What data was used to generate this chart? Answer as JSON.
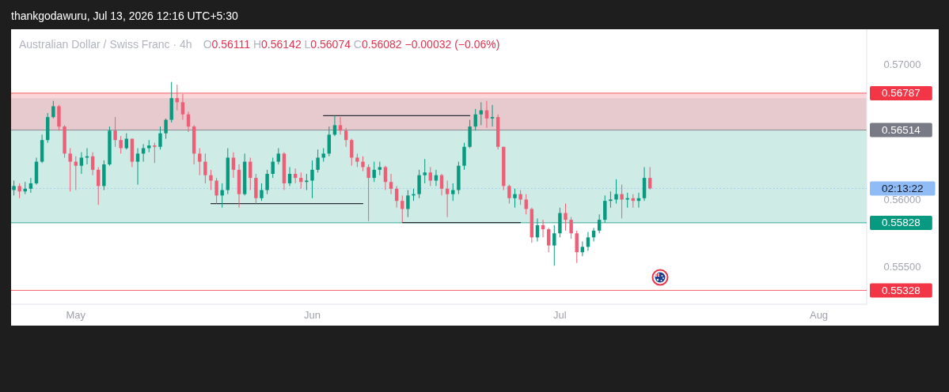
{
  "chart_data": {
    "type": "candlestick",
    "title": "Australian Dollar / Swiss Franc · 4h",
    "subtitle": "O0.56111 H0.56142 L0.56074 C0.56082 −0.00032 (−0.06%)",
    "annotations": [
      "thankgodawuru, Jul 13, 2026 12:16 UTC+5:30",
      "02:13:22"
    ],
    "categories": [
      null,
      null,
      null,
      null,
      null,
      null,
      null,
      null,
      null,
      null,
      null,
      "May",
      null,
      null,
      null,
      null,
      null,
      null,
      null,
      null,
      null,
      null,
      null,
      null,
      null,
      null,
      null,
      null,
      null,
      null,
      null,
      null,
      null,
      null,
      null,
      null,
      null,
      null,
      null,
      null,
      null,
      null,
      null,
      null,
      null,
      null,
      null,
      null,
      null,
      null,
      null,
      null,
      null,
      "Jun",
      null,
      null,
      null,
      null,
      null,
      null,
      null,
      null,
      null,
      null,
      null,
      null,
      null,
      null,
      null,
      null,
      null,
      null,
      null,
      null,
      null,
      null,
      null,
      null,
      null,
      null,
      null,
      null,
      null,
      null,
      null,
      null,
      null,
      null,
      null,
      null,
      null,
      null,
      null,
      null,
      null,
      null,
      null,
      "Jul",
      null,
      null,
      null,
      null,
      null,
      null,
      null,
      null,
      null,
      null,
      null,
      null,
      null,
      null,
      null,
      null,
      null,
      null,
      null,
      null,
      null,
      null,
      null,
      null,
      null,
      null,
      null,
      null,
      null,
      null,
      null,
      null,
      null,
      null,
      null,
      null,
      null,
      null,
      null,
      null,
      null,
      null,
      null,
      null,
      null,
      "Aug",
      null,
      null,
      null,
      null,
      null,
      null,
      null,
      null
    ],
    "ohlc": [
      [
        0.5607,
        0.5614,
        0.5603,
        0.561
      ],
      [
        0.561,
        0.5612,
        0.5601,
        0.5606
      ],
      [
        0.5606,
        0.5613,
        0.5604,
        0.5608
      ],
      [
        0.5608,
        0.5616,
        0.5605,
        0.5612
      ],
      [
        0.5612,
        0.5631,
        0.5611,
        0.5628
      ],
      [
        0.5628,
        0.5648,
        0.5627,
        0.5644
      ],
      [
        0.5644,
        0.5664,
        0.5642,
        0.5661
      ],
      [
        0.5661,
        0.5673,
        0.566,
        0.5669
      ],
      [
        0.5669,
        0.567,
        0.5651,
        0.5654
      ],
      [
        0.5654,
        0.5655,
        0.5631,
        0.5634
      ],
      [
        0.5634,
        0.5638,
        0.5606,
        0.5628
      ],
      [
        0.5628,
        0.5632,
        0.5607,
        0.5625
      ],
      [
        0.5625,
        0.5635,
        0.5619,
        0.5631
      ],
      [
        0.5631,
        0.5638,
        0.5626,
        0.5632
      ],
      [
        0.5632,
        0.5635,
        0.5618,
        0.5622
      ],
      [
        0.5622,
        0.5624,
        0.5596,
        0.561
      ],
      [
        0.561,
        0.5629,
        0.5607,
        0.5626
      ],
      [
        0.5626,
        0.5654,
        0.5625,
        0.5651
      ],
      [
        0.5651,
        0.5661,
        0.5639,
        0.5644
      ],
      [
        0.5644,
        0.5647,
        0.5634,
        0.5638
      ],
      [
        0.5638,
        0.5649,
        0.5637,
        0.5645
      ],
      [
        0.5645,
        0.5645,
        0.5624,
        0.5628
      ],
      [
        0.5628,
        0.5638,
        0.5611,
        0.5634
      ],
      [
        0.5634,
        0.5641,
        0.5628,
        0.5638
      ],
      [
        0.5638,
        0.5644,
        0.5635,
        0.564
      ],
      [
        0.564,
        0.5642,
        0.5627,
        0.5639
      ],
      [
        0.5639,
        0.5654,
        0.5637,
        0.5649
      ],
      [
        0.5649,
        0.566,
        0.5645,
        0.5659
      ],
      [
        0.5659,
        0.5687,
        0.5657,
        0.5675
      ],
      [
        0.5675,
        0.5685,
        0.5666,
        0.5672
      ],
      [
        0.5672,
        0.5678,
        0.5659,
        0.5663
      ],
      [
        0.5663,
        0.5665,
        0.565,
        0.5654
      ],
      [
        0.5654,
        0.5655,
        0.5626,
        0.5634
      ],
      [
        0.5634,
        0.5638,
        0.5618,
        0.5628
      ],
      [
        0.5628,
        0.5634,
        0.5612,
        0.5618
      ],
      [
        0.5618,
        0.5622,
        0.5607,
        0.5614
      ],
      [
        0.5614,
        0.5616,
        0.5597,
        0.5603
      ],
      [
        0.5603,
        0.5612,
        0.5594,
        0.5607
      ],
      [
        0.5607,
        0.5638,
        0.5604,
        0.5631
      ],
      [
        0.5631,
        0.5635,
        0.5616,
        0.5622
      ],
      [
        0.5622,
        0.5626,
        0.5594,
        0.5604
      ],
      [
        0.5604,
        0.5634,
        0.5603,
        0.5628
      ],
      [
        0.5628,
        0.5631,
        0.5607,
        0.5616
      ],
      [
        0.5616,
        0.5619,
        0.5597,
        0.5601
      ],
      [
        0.5601,
        0.5612,
        0.5599,
        0.5607
      ],
      [
        0.5607,
        0.5622,
        0.5604,
        0.5619
      ],
      [
        0.5619,
        0.5631,
        0.5616,
        0.5628
      ],
      [
        0.5628,
        0.5638,
        0.5626,
        0.5634
      ],
      [
        0.5634,
        0.5635,
        0.5607,
        0.5612
      ],
      [
        0.5612,
        0.5624,
        0.561,
        0.5619
      ],
      [
        0.5619,
        0.5623,
        0.5612,
        0.5616
      ],
      [
        0.5616,
        0.562,
        0.5608,
        0.5613
      ],
      [
        0.5613,
        0.5619,
        0.5607,
        0.5614
      ],
      [
        0.5614,
        0.5629,
        0.5601,
        0.5622
      ],
      [
        0.5622,
        0.5637,
        0.562,
        0.5631
      ],
      [
        0.5631,
        0.5638,
        0.5628,
        0.5634
      ],
      [
        0.5634,
        0.5654,
        0.5632,
        0.5648
      ],
      [
        0.5648,
        0.5662,
        0.5647,
        0.5655
      ],
      [
        0.5655,
        0.5661,
        0.5648,
        0.5651
      ],
      [
        0.5651,
        0.5653,
        0.5639,
        0.5644
      ],
      [
        0.5644,
        0.5645,
        0.5625,
        0.5631
      ],
      [
        0.5631,
        0.5634,
        0.5624,
        0.5628
      ],
      [
        0.5628,
        0.5632,
        0.5621,
        0.5624
      ],
      [
        0.5624,
        0.5626,
        0.5584,
        0.5616
      ],
      [
        0.5616,
        0.5628,
        0.5613,
        0.5622
      ],
      [
        0.5622,
        0.5628,
        0.5618,
        0.5624
      ],
      [
        0.5624,
        0.5625,
        0.5607,
        0.5613
      ],
      [
        0.5613,
        0.5619,
        0.5604,
        0.5608
      ],
      [
        0.5608,
        0.561,
        0.5594,
        0.5599
      ],
      [
        0.5599,
        0.5603,
        0.5583,
        0.5593
      ],
      [
        0.5593,
        0.5607,
        0.5587,
        0.5603
      ],
      [
        0.5603,
        0.5608,
        0.5599,
        0.5604
      ],
      [
        0.5604,
        0.5622,
        0.5601,
        0.5618
      ],
      [
        0.5618,
        0.563,
        0.5612,
        0.562
      ],
      [
        0.562,
        0.5624,
        0.561,
        0.5614
      ],
      [
        0.5614,
        0.5622,
        0.561,
        0.5618
      ],
      [
        0.5618,
        0.5619,
        0.5603,
        0.5608
      ],
      [
        0.5608,
        0.5614,
        0.5587,
        0.5604
      ],
      [
        0.5604,
        0.5612,
        0.5599,
        0.5607
      ],
      [
        0.5607,
        0.5628,
        0.5604,
        0.5625
      ],
      [
        0.5625,
        0.5642,
        0.5622,
        0.5639
      ],
      [
        0.5639,
        0.5659,
        0.5638,
        0.5654
      ],
      [
        0.5654,
        0.5667,
        0.5651,
        0.5663
      ],
      [
        0.5663,
        0.5672,
        0.5655,
        0.5666
      ],
      [
        0.5666,
        0.5673,
        0.5653,
        0.566
      ],
      [
        0.566,
        0.567,
        0.5654,
        0.5661
      ],
      [
        0.5661,
        0.5663,
        0.5637,
        0.5639
      ],
      [
        0.5639,
        0.5639,
        0.5607,
        0.561
      ],
      [
        0.561,
        0.5611,
        0.5597,
        0.5601
      ],
      [
        0.5601,
        0.5608,
        0.5594,
        0.5604
      ],
      [
        0.5604,
        0.5607,
        0.5596,
        0.56
      ],
      [
        0.56,
        0.5604,
        0.5589,
        0.5593
      ],
      [
        0.5593,
        0.5594,
        0.5568,
        0.5572
      ],
      [
        0.5572,
        0.5586,
        0.5569,
        0.5581
      ],
      [
        0.5581,
        0.5585,
        0.5572,
        0.5578
      ],
      [
        0.5578,
        0.5579,
        0.5561,
        0.5566
      ],
      [
        0.5566,
        0.5581,
        0.5551,
        0.5575
      ],
      [
        0.5575,
        0.5594,
        0.5572,
        0.559
      ],
      [
        0.559,
        0.5597,
        0.5577,
        0.5585
      ],
      [
        0.5585,
        0.5587,
        0.5571,
        0.5575
      ],
      [
        0.5575,
        0.5577,
        0.5553,
        0.5561
      ],
      [
        0.5561,
        0.5569,
        0.5558,
        0.5565
      ],
      [
        0.5565,
        0.5576,
        0.5562,
        0.5572
      ],
      [
        0.5572,
        0.5579,
        0.5569,
        0.5577
      ],
      [
        0.5577,
        0.5589,
        0.5575,
        0.5585
      ],
      [
        0.5585,
        0.5603,
        0.5583,
        0.5599
      ],
      [
        0.5599,
        0.5606,
        0.5594,
        0.56
      ],
      [
        0.56,
        0.5615,
        0.5597,
        0.5604
      ],
      [
        0.5604,
        0.5611,
        0.5586,
        0.56
      ],
      [
        0.56,
        0.5605,
        0.5594,
        0.5601
      ],
      [
        0.5601,
        0.5604,
        0.5594,
        0.5599
      ],
      [
        0.5599,
        0.5605,
        0.5594,
        0.5601
      ],
      [
        0.5601,
        0.5624,
        0.5599,
        0.5616
      ],
      [
        0.5616,
        0.5624,
        0.56074,
        0.56082
      ],
      null,
      null,
      null,
      null,
      null,
      null,
      null,
      null,
      null,
      null,
      null,
      null,
      null,
      null,
      null,
      null,
      null,
      null,
      null,
      null,
      null,
      null,
      null,
      null,
      null,
      null,
      null,
      null,
      null,
      null,
      null,
      null,
      null,
      null,
      null,
      null,
      null,
      null
    ],
    "colors": [
      "#089981",
      "#ee5f77",
      "#089981",
      "#089981",
      "#089981",
      "#089981",
      "#089981",
      "#089981",
      "#ee5f77",
      "#ee5f77",
      "#ee5f77",
      "#ee5f77",
      "#089981",
      "#089981",
      "#ee5f77",
      "#ee5f77",
      "#089981",
      "#089981",
      "#ee5f77",
      "#ee5f77",
      "#089981",
      "#ee5f77",
      "#089981",
      "#089981",
      "#089981",
      "#ee5f77",
      "#089981",
      "#089981",
      "#089981",
      "#ee5f77",
      "#ee5f77",
      "#ee5f77",
      "#ee5f77",
      "#ee5f77",
      "#ee5f77",
      "#ee5f77",
      "#ee5f77",
      "#089981",
      "#089981",
      "#ee5f77",
      "#ee5f77",
      "#089981",
      "#ee5f77",
      "#ee5f77",
      "#089981",
      "#089981",
      "#089981",
      "#089981",
      "#ee5f77",
      "#089981",
      "#ee5f77",
      "#ee5f77",
      "#089981",
      "#089981",
      "#089981",
      "#089981",
      "#089981",
      "#089981",
      "#ee5f77",
      "#ee5f77",
      "#ee5f77",
      "#ee5f77",
      "#ee5f77",
      "#ee5f77",
      "#089981",
      "#089981",
      "#ee5f77",
      "#ee5f77",
      "#ee5f77",
      "#ee5f77",
      "#089981",
      "#089981",
      "#089981",
      "#089981",
      "#ee5f77",
      "#089981",
      "#ee5f77",
      "#ee5f77",
      "#089981",
      "#089981",
      "#089981",
      "#089981",
      "#089981",
      "#089981",
      "#ee5f77",
      "#089981",
      "#ee5f77",
      "#ee5f77",
      "#ee5f77",
      "#089981",
      "#ee5f77",
      "#ee5f77",
      "#ee5f77",
      "#089981",
      "#ee5f77",
      "#ee5f77",
      "#089981",
      "#089981",
      "#ee5f77",
      "#ee5f77",
      "#ee5f77",
      "#089981",
      "#089981",
      "#089981",
      "#089981",
      "#089981",
      "#089981",
      "#089981",
      "#ee5f77",
      "#089981",
      "#ee5f77",
      "#089981",
      "#089981",
      "#ee5f77",
      null,
      null,
      null,
      null,
      null,
      null,
      null,
      null,
      null,
      null,
      null,
      null,
      null,
      null,
      null,
      null,
      null,
      null,
      null,
      null,
      null,
      null,
      null,
      null,
      null,
      null,
      null,
      null,
      null,
      null,
      null,
      null,
      null,
      null,
      null,
      null,
      null,
      null
    ],
    "series": [
      {
        "type": "line",
        "color": "#2a2e39",
        "values": [
          null,
          null,
          null,
          null,
          null,
          null,
          null,
          null,
          null,
          null,
          null,
          null,
          null,
          null,
          null,
          null,
          null,
          null,
          null,
          null,
          null,
          null,
          null,
          null,
          null,
          null,
          null,
          null,
          null,
          null,
          null,
          null,
          null,
          null,
          null,
          null,
          null,
          null,
          null,
          null,
          null,
          null,
          null,
          null,
          null,
          null,
          null,
          null,
          null,
          null,
          null,
          null,
          null,
          null,
          null,
          0.5662,
          0.5662,
          0.5662,
          0.5662,
          0.5662,
          0.5662,
          0.5662,
          0.5662,
          0.5662,
          0.5662,
          0.5662,
          0.5662,
          0.5662,
          0.5662,
          0.5662,
          0.5662,
          0.5662,
          0.5662,
          0.5662,
          0.5662,
          0.5662,
          0.5662,
          0.5662,
          0.5662,
          0.5662,
          0.5662,
          0.5662,
          null,
          null,
          null,
          null,
          null,
          null,
          null,
          null,
          null,
          null,
          null,
          null,
          null,
          null,
          null,
          null,
          null,
          null,
          null,
          null,
          null,
          null,
          null,
          null,
          null,
          null,
          null,
          null,
          null,
          null,
          null,
          null,
          null,
          null,
          null,
          null,
          null,
          null,
          null,
          null,
          null,
          null,
          null,
          null,
          null,
          null,
          null,
          null,
          null,
          null,
          null,
          null,
          null,
          null,
          null,
          null,
          null,
          null,
          null,
          null,
          null,
          null,
          null,
          null,
          null,
          null,
          null,
          null,
          null,
          null
        ]
      },
      {
        "type": "line",
        "color": "#2a2e39",
        "values": [
          null,
          null,
          null,
          null,
          null,
          null,
          null,
          null,
          null,
          null,
          null,
          null,
          null,
          null,
          null,
          null,
          null,
          null,
          null,
          null,
          null,
          null,
          null,
          null,
          null,
          null,
          null,
          null,
          null,
          null,
          null,
          null,
          null,
          null,
          null,
          0.5597,
          0.5597,
          0.5597,
          0.5597,
          0.5597,
          0.5597,
          0.5597,
          0.5597,
          0.5597,
          0.5597,
          0.5597,
          0.5597,
          0.5597,
          0.5597,
          0.5597,
          0.5597,
          0.5597,
          0.5597,
          0.5597,
          0.5597,
          0.5597,
          0.5597,
          0.5597,
          0.5597,
          0.5597,
          0.5597,
          0.5597,
          0.5597,
          null,
          null,
          null,
          null,
          null,
          null,
          null,
          null,
          null,
          null,
          null,
          null,
          null,
          null,
          null,
          null,
          null,
          null,
          null,
          null,
          null,
          null,
          null,
          null,
          null,
          null,
          null,
          null,
          null,
          null,
          null,
          null,
          null,
          null,
          null,
          null,
          null,
          null,
          null,
          null,
          null,
          null,
          null,
          null,
          null,
          null,
          null,
          null,
          null,
          null,
          null,
          null,
          null,
          null,
          null,
          null,
          null,
          null,
          null,
          null,
          null,
          null,
          null,
          null,
          null,
          null,
          null,
          null,
          null,
          null,
          null,
          null,
          null,
          null,
          null,
          null,
          null,
          null,
          null,
          null,
          null,
          null,
          null,
          null,
          null,
          null,
          null,
          null,
          null
        ]
      },
      {
        "type": "line",
        "color": "#2a2e39",
        "values": [
          null,
          null,
          null,
          null,
          null,
          null,
          null,
          null,
          null,
          null,
          null,
          null,
          null,
          null,
          null,
          null,
          null,
          null,
          null,
          null,
          null,
          null,
          null,
          null,
          null,
          null,
          null,
          null,
          null,
          null,
          null,
          null,
          null,
          null,
          null,
          null,
          null,
          null,
          null,
          null,
          null,
          null,
          null,
          null,
          null,
          null,
          null,
          null,
          null,
          null,
          null,
          null,
          null,
          null,
          null,
          null,
          null,
          null,
          null,
          null,
          null,
          null,
          null,
          null,
          null,
          null,
          null,
          null,
          null,
          0.5583,
          0.5583,
          0.5583,
          0.5583,
          0.5583,
          0.5583,
          0.5583,
          0.5583,
          0.5583,
          0.5583,
          0.5583,
          0.5583,
          0.5583,
          0.5583,
          0.5583,
          0.5583,
          0.5583,
          0.5583,
          0.5583,
          0.5583,
          0.5583,
          0.5583,
          null,
          null,
          null,
          null,
          null,
          null,
          null,
          null,
          null,
          null,
          null,
          null,
          null,
          null,
          null,
          null,
          null,
          null,
          null,
          null,
          null,
          null,
          null,
          null,
          null,
          null,
          null,
          null,
          null,
          null,
          null,
          null,
          null,
          null,
          null,
          null,
          null,
          null,
          null,
          null,
          null,
          null,
          null,
          null,
          null,
          null,
          null,
          null,
          null,
          null,
          null,
          null,
          null,
          null,
          null,
          null,
          null,
          null,
          null,
          null,
          null
        ]
      }
    ],
    "ylim": [
      0.55225,
      0.5726
    ],
    "yticks": [
      {
        "value": 0.555,
        "label": "0.55500"
      },
      {
        "value": 0.56,
        "label": "0.56000"
      },
      {
        "value": 0.57,
        "label": "0.57000"
      }
    ],
    "bands": [
      {
        "axis": "y",
        "from": 0.56514,
        "to": 0.56787,
        "color": "#f23645"
      },
      {
        "axis": "y",
        "from": 0.55828,
        "to": 0.56514,
        "color": "#089981"
      },
      {
        "axis": "y",
        "from": 0.56514,
        "to": 0.5675,
        "color": "#9598a1"
      }
    ],
    "ref_lines": [
      {
        "axis": "y",
        "value": 0.56082,
        "color": "#8fbbf7",
        "line_style": "dotted"
      },
      {
        "axis": "y",
        "value": 0.56787,
        "label": "0.56787",
        "color": "#f23645"
      },
      {
        "axis": "y",
        "value": 0.56514,
        "label": "0.56514",
        "color": "#787b86"
      },
      {
        "axis": "y",
        "value": 0.55828,
        "label": "0.55828",
        "color": "#089981"
      },
      {
        "axis": "y",
        "value": 0.55328,
        "label": "0.55328",
        "color": "#f23645"
      }
    ]
  }
}
